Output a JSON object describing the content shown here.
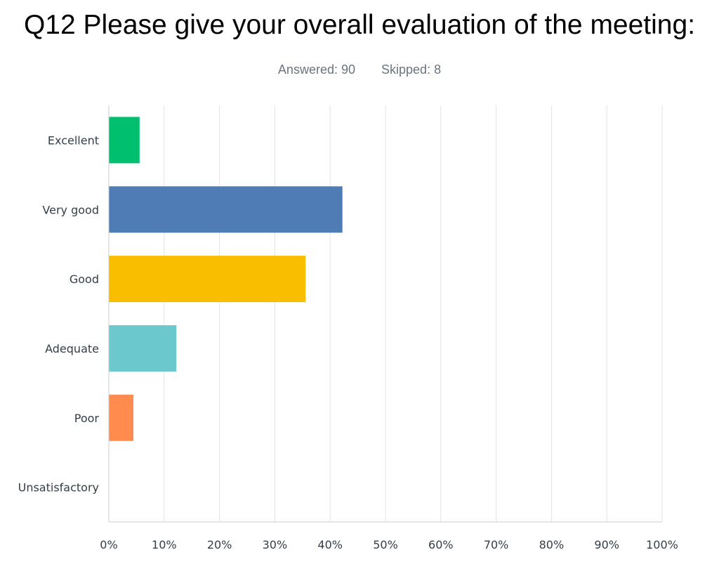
{
  "question": {
    "title": "Q12 Please give your overall evaluation of the meeting:",
    "answered": "Answered: 90",
    "skipped": "Skipped: 8"
  },
  "chart_data": {
    "type": "bar",
    "orientation": "horizontal",
    "title": "",
    "xlabel": "",
    "ylabel": "",
    "categories": [
      "Excellent",
      "Very good",
      "Good",
      "Adequate",
      "Poor",
      "Unsatisfactory"
    ],
    "values": [
      5.56,
      42.22,
      35.56,
      12.22,
      4.44,
      0
    ],
    "unit": "%",
    "xlim": [
      0,
      100
    ],
    "ticks": [
      "0%",
      "10%",
      "20%",
      "30%",
      "40%",
      "50%",
      "60%",
      "70%",
      "80%",
      "90%",
      "100%"
    ],
    "colors": [
      "#00bf6f",
      "#507cb6",
      "#f9be00",
      "#6bc8cd",
      "#ff8b4f",
      "#7f7fff"
    ],
    "grid": true,
    "legend": "none"
  }
}
